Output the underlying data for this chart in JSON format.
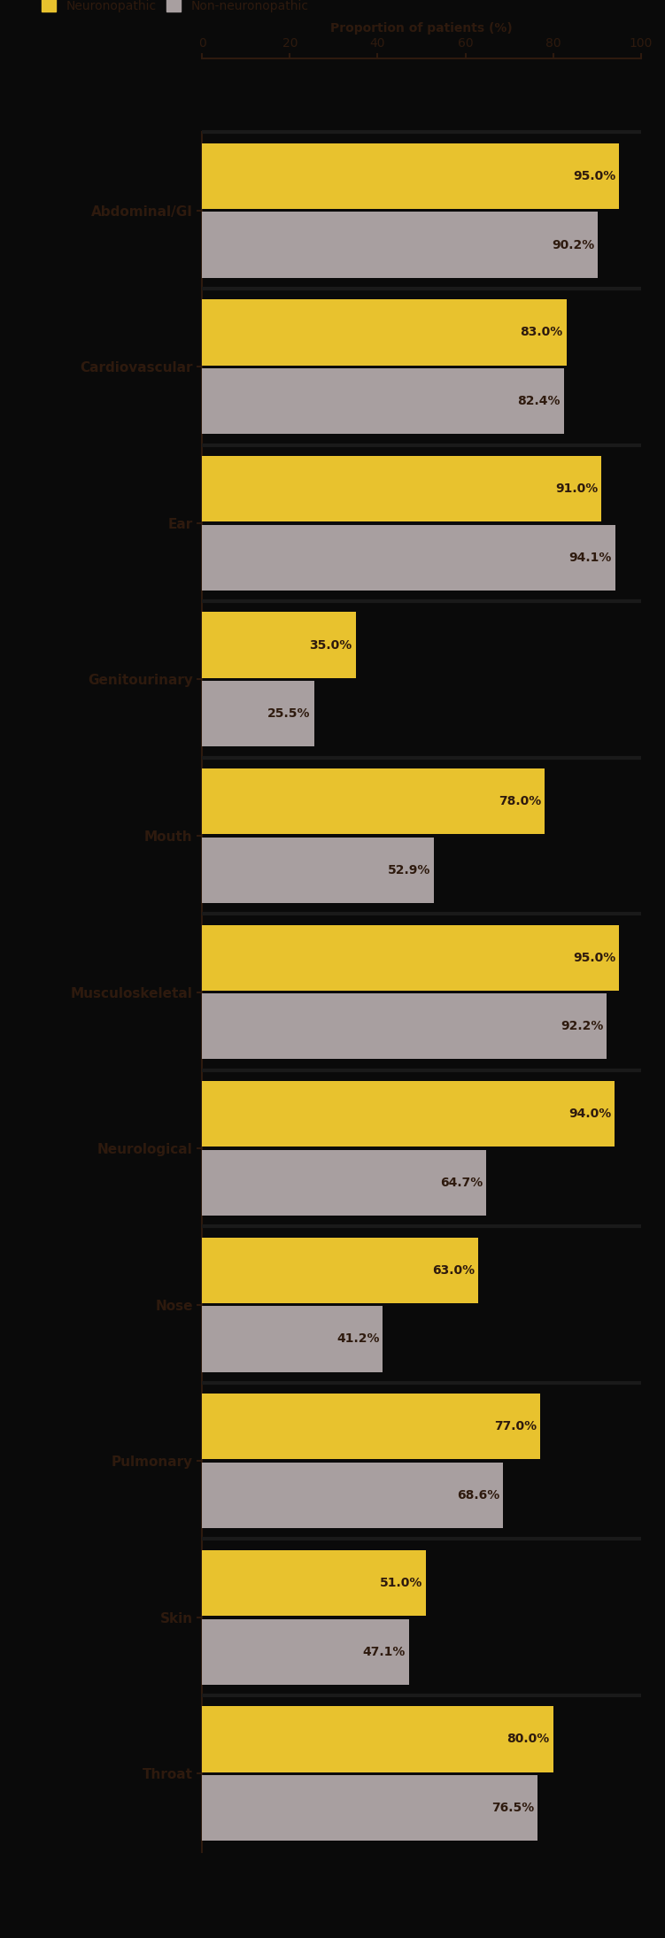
{
  "categories": [
    "Abdominal/GI",
    "Cardiovascular",
    "Ear",
    "Genitourinary",
    "Mouth",
    "Musculoskeletal",
    "Neurological",
    "Nose",
    "Pulmonary",
    "Skin",
    "Throat"
  ],
  "neuronopathic": [
    95.0,
    83.0,
    91.0,
    35.0,
    78.0,
    95.0,
    94.0,
    63.0,
    77.0,
    51.0,
    80.0
  ],
  "non_neuronopathic": [
    90.2,
    82.4,
    94.1,
    25.5,
    52.9,
    92.2,
    64.7,
    41.2,
    68.6,
    47.1,
    76.5
  ],
  "color_neuro": "#E8C22E",
  "color_non_neuro": "#A89FA0",
  "background_color": "#0A0A0A",
  "text_color": "#2E1A0E",
  "xlabel": "Proportion of patients (%)",
  "xlim": [
    0,
    100
  ],
  "xticks": [
    0,
    20,
    40,
    60,
    80,
    100
  ],
  "bar_height": 0.42,
  "legend_neuro": "Neuronopathic",
  "legend_non_neuro": "Non-neuronopathic",
  "figure_width": 7.51,
  "figure_height": 21.89,
  "dpi": 100
}
